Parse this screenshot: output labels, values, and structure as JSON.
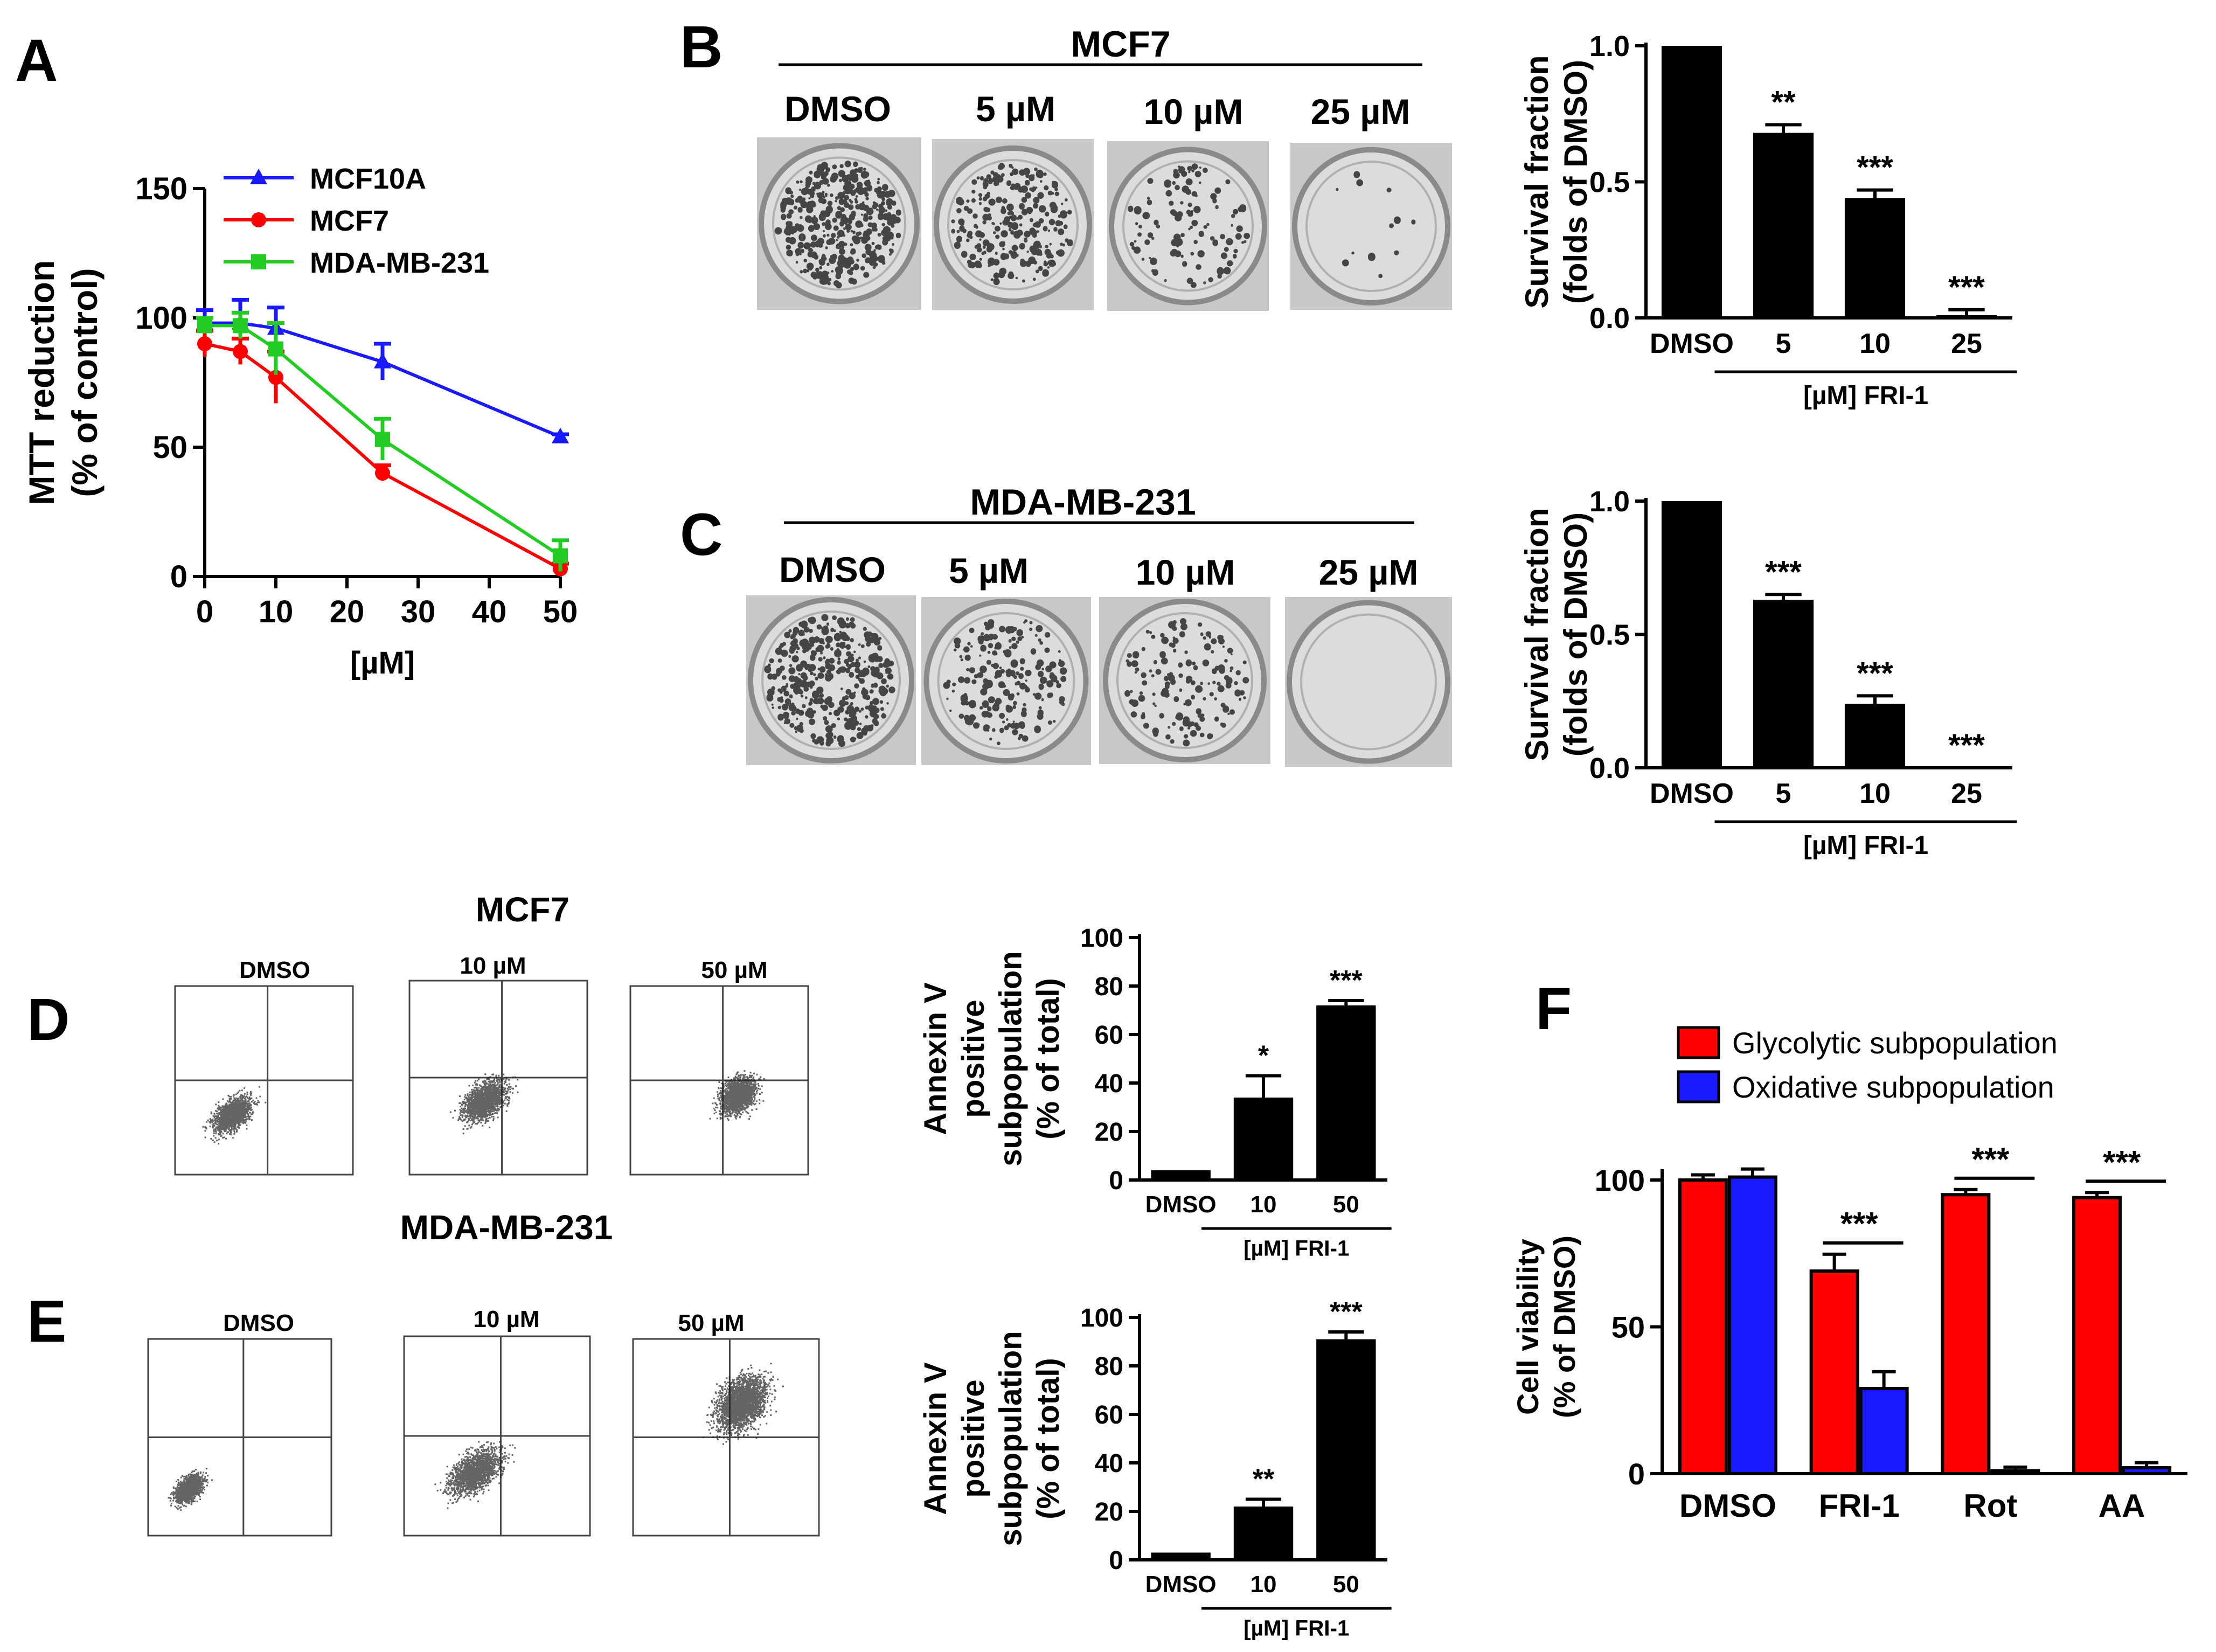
{
  "panel_letters": [
    "A",
    "B",
    "C",
    "D",
    "E",
    "F"
  ],
  "plates": {
    "B": {
      "title": "MCF7",
      "labels": [
        "DMSO",
        "5 µM",
        "10 µM",
        "25 µM"
      ]
    },
    "C": {
      "title": "MDA-MB-231",
      "labels": [
        "DMSO",
        "5 µM",
        "10 µM",
        "25 µM"
      ]
    }
  },
  "flow": {
    "D": {
      "title": "MCF7",
      "labels": [
        "DMSO",
        "10 µM",
        "50 µM"
      ]
    },
    "E": {
      "title": "MDA-MB-231",
      "labels": [
        "DMSO",
        "10 µM",
        "50 µM"
      ]
    }
  },
  "colors": {
    "blue": "#1a1aff",
    "red": "#ff0000",
    "green": "#22cc22",
    "black": "#000000"
  },
  "chart_data": [
    {
      "id": "A",
      "type": "line",
      "xlabel": "[µM]",
      "ylabel": [
        "MTT reduction",
        "(% of control)"
      ],
      "xlim": [
        0,
        50
      ],
      "ylim": [
        0,
        150
      ],
      "xticks": [
        0,
        10,
        20,
        30,
        40,
        50
      ],
      "yticks": [
        0,
        50,
        100,
        150
      ],
      "legend_position": "top-left",
      "series": [
        {
          "name": "MCF10A",
          "color": "#1a1aff",
          "marker": "triangle",
          "x": [
            0,
            5,
            10,
            25,
            50
          ],
          "y": [
            98,
            98,
            96,
            83,
            54
          ],
          "err": [
            5,
            9,
            8,
            7,
            1
          ]
        },
        {
          "name": "MCF7",
          "color": "#ff0000",
          "marker": "circle",
          "x": [
            0,
            5,
            10,
            25,
            50
          ],
          "y": [
            90,
            87,
            77,
            40,
            3
          ],
          "err": [
            5,
            5,
            10,
            3,
            2
          ]
        },
        {
          "name": "MDA-MB-231",
          "color": "#22cc22",
          "marker": "square",
          "x": [
            0,
            5,
            10,
            25,
            50
          ],
          "y": [
            97,
            97,
            88,
            53,
            8
          ],
          "err": [
            3,
            5,
            10,
            8,
            6
          ]
        }
      ]
    },
    {
      "id": "B",
      "type": "bar",
      "categories": [
        "DMSO",
        "5",
        "10",
        "25"
      ],
      "values": [
        1.0,
        0.68,
        0.44,
        0.01
      ],
      "err": [
        0,
        0.03,
        0.03,
        0.02
      ],
      "sig": [
        "",
        "**",
        "***",
        "***"
      ],
      "ylabel": [
        "Survival fraction",
        "(folds of DMSO)"
      ],
      "ylim": [
        0,
        1.0
      ],
      "yticks": [
        "0.0",
        "0.5",
        "1.0"
      ],
      "xgroup_label": "[µM] FRI-1"
    },
    {
      "id": "C",
      "type": "bar",
      "categories": [
        "DMSO",
        "5",
        "10",
        "25"
      ],
      "values": [
        1.0,
        0.63,
        0.24,
        0.0
      ],
      "err": [
        0,
        0.02,
        0.03,
        0
      ],
      "sig": [
        "",
        "***",
        "***",
        "***"
      ],
      "ylabel": [
        "Survival fraction",
        "(folds of DMSO)"
      ],
      "ylim": [
        0,
        1.0
      ],
      "yticks": [
        "0.0",
        "0.5",
        "1.0"
      ],
      "xgroup_label": "[µM] FRI-1"
    },
    {
      "id": "D",
      "type": "bar",
      "categories": [
        "DMSO",
        "10",
        "50"
      ],
      "values": [
        4,
        34,
        72
      ],
      "err": [
        0,
        9,
        2
      ],
      "sig": [
        "",
        "*",
        "***"
      ],
      "ylabel": [
        "Annexin V",
        "positive",
        "subpopulation",
        "(% of total)"
      ],
      "ylim": [
        0,
        100
      ],
      "yticks": [
        0,
        20,
        40,
        60,
        80,
        100
      ],
      "xgroup_label": "[µM] FRI-1"
    },
    {
      "id": "E",
      "type": "bar",
      "categories": [
        "DMSO",
        "10",
        "50"
      ],
      "values": [
        3,
        22,
        91
      ],
      "err": [
        0,
        3,
        3
      ],
      "sig": [
        "",
        "**",
        "***"
      ],
      "ylabel": [
        "Annexin V",
        "positive",
        "subpopulation",
        "(% of total)"
      ],
      "ylim": [
        0,
        100
      ],
      "yticks": [
        0,
        20,
        40,
        60,
        80,
        100
      ],
      "xgroup_label": "[µM] FRI-1"
    },
    {
      "id": "F",
      "type": "bar",
      "categories": [
        "DMSO",
        "FRI-1",
        "Rot",
        "AA"
      ],
      "series": [
        {
          "name": "Glycolytic subpopulation",
          "color": "#ff0000",
          "values": [
            100,
            69,
            95,
            94
          ],
          "err": [
            1,
            5,
            1,
            1
          ]
        },
        {
          "name": "Oxidative subpopulation",
          "color": "#1a1aff",
          "values": [
            101,
            29,
            1,
            2
          ],
          "err": [
            2,
            5,
            0.5,
            1
          ]
        }
      ],
      "sig": [
        "",
        "***",
        "***",
        "***"
      ],
      "ylabel": [
        "Cell viability",
        "(% of DMSO)"
      ],
      "ylim": [
        0,
        100
      ],
      "yticks": [
        0,
        50,
        100
      ],
      "legend_position": "top-left"
    }
  ]
}
